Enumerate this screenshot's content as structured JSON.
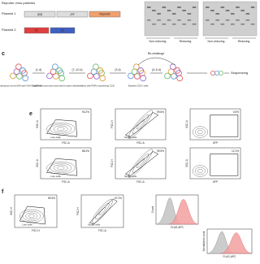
{
  "panel_a": {
    "header": "Reporter virus particles",
    "plasmids": [
      {
        "label": "Plasmid 1",
        "segments": [
          "gag",
          "pol",
          "Reporter"
        ]
      },
      {
        "label": "Plasmid 2",
        "segments": [
          "E2",
          "E1"
        ]
      }
    ],
    "gels": [
      {
        "labels": [
          "Non-reducing",
          "Reducing"
        ]
      },
      {
        "labels": [
          "Non-reducing",
          "Reducing"
        ]
      }
    ]
  },
  "panel_c": {
    "label": "c",
    "steps": [
      "Transduce at low MOI with V3V-C sgRNAs",
      "Select with puromycin and wait for gene depletion",
      "Infect with RVPs expressing CCD",
      "Deplete CCD+ cells"
    ],
    "durations": [
      "(1 d)",
      "(7–10 d)",
      "(3 d)",
      "(3–5 d)"
    ],
    "rechallenge": "Re-challenge",
    "final": "Sequencing"
  },
  "panel_e": {
    "label": "e",
    "plots": [
      {
        "x": "FSC-A",
        "y": "SSC-A",
        "gate": "Live cells",
        "pct": "90.2%"
      },
      {
        "x": "FSC-A",
        "y": "FSC-H",
        "gate": "Single cells",
        "pct": "99.6%"
      },
      {
        "x": "GFP",
        "y": "SSC-A",
        "pct": "0.5%"
      },
      {
        "x": "FSC-A",
        "y": "SSC-A",
        "gate": "Live cells",
        "pct": "88.4%"
      },
      {
        "x": "FSC-A",
        "y": "FSC-H",
        "gate": "Single cells",
        "pct": "99.5%"
      },
      {
        "x": "GFP",
        "y": "SSC-A",
        "pct": "12.1%"
      }
    ]
  },
  "panel_f": {
    "label": "f",
    "plots": [
      {
        "x": "FSC-H",
        "y": "SSC-H",
        "gate": "Live cells",
        "pct": "89.5%"
      },
      {
        "x": "FSC-A",
        "y": "FSC-H",
        "gate": "Single cells",
        "pct": "97.2%"
      },
      {
        "x": "FLAG-APC",
        "y": "Count"
      },
      {
        "x": "FLAG-APC",
        "y": "Normalized count"
      }
    ]
  }
}
